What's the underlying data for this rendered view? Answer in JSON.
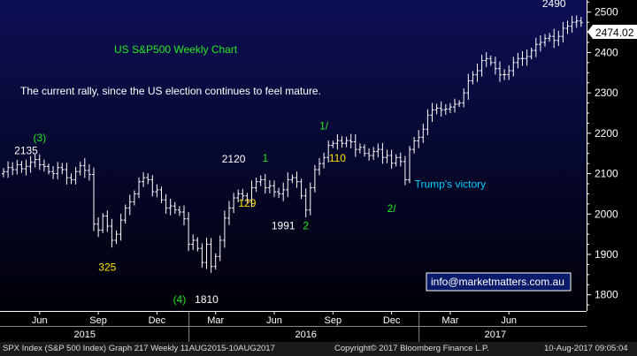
{
  "chart_data": {
    "type": "ohlc",
    "title": "US S&P500 Weekly Chart",
    "subtitle": "The current rally, since the US election continues to feel mature.",
    "last_price_label": "2474.02",
    "ylim": [
      1760,
      2530
    ],
    "y_ticks": [
      1800,
      1900,
      2000,
      2100,
      2200,
      2300,
      2400,
      2500
    ],
    "x_month_ticks": [
      {
        "week": 8,
        "label": "Jun"
      },
      {
        "week": 21,
        "label": "Sep"
      },
      {
        "week": 34,
        "label": "Dec"
      },
      {
        "week": 47,
        "label": "Mar"
      },
      {
        "week": 60,
        "label": "Jun"
      },
      {
        "week": 73,
        "label": "Sep"
      },
      {
        "week": 86,
        "label": "Dec"
      },
      {
        "week": 99,
        "label": "Mar"
      },
      {
        "week": 112,
        "label": "Jun"
      }
    ],
    "x_year_labels": [
      {
        "week": 18,
        "label": "2015"
      },
      {
        "week": 67,
        "label": "2016"
      },
      {
        "week": 109,
        "label": "2017"
      }
    ],
    "x_year_dividers": [
      41,
      92
    ],
    "series": [
      {
        "type": "ohlc",
        "closes": [
          2105,
          2115,
          2110,
          2122,
          2112,
          2118,
          2128,
          2135,
          2122,
          2118,
          2105,
          2100,
          2115,
          2110,
          2090,
          2085,
          2105,
          2120,
          2108,
          2098,
          1975,
          1960,
          1995,
          1970,
          1935,
          1950,
          1985,
          2015,
          2030,
          2050,
          2080,
          2090,
          2085,
          2055,
          2060,
          2035,
          2015,
          2020,
          2010,
          2005,
          1988,
          1925,
          1935,
          1915,
          1880,
          1925,
          1870,
          1895,
          1935,
          1990,
          2015,
          2040,
          2050,
          2045,
          2035,
          2065,
          2080,
          2085,
          2065,
          2070,
          2055,
          2050,
          2060,
          2085,
          2090,
          2080,
          2045,
          2010,
          2065,
          2110,
          2125,
          2140,
          2170,
          2175,
          2182,
          2175,
          2182,
          2179,
          2160,
          2165,
          2150,
          2145,
          2155,
          2160,
          2140,
          2145,
          2126,
          2140,
          2130,
          2085,
          2160,
          2181,
          2190,
          2210,
          2245,
          2258,
          2262,
          2258,
          2260,
          2265,
          2272,
          2275,
          2300,
          2330,
          2345,
          2355,
          2380,
          2385,
          2375,
          2360,
          2345,
          2345,
          2355,
          2375,
          2385,
          2385,
          2390,
          2405,
          2420,
          2425,
          2435,
          2440,
          2430,
          2440,
          2460,
          2465,
          2475,
          2478,
          2474
        ]
      }
    ],
    "annotations": [
      {
        "text": "2135",
        "x": 5,
        "y": 2148,
        "color": "#ffffff"
      },
      {
        "text": "(3)",
        "x": 8,
        "y": 2180,
        "color": "#22e822"
      },
      {
        "text": "325",
        "x": 23,
        "y": 1860,
        "color": "#ffe000"
      },
      {
        "text": "2120",
        "x": 51,
        "y": 2127,
        "color": "#ffffff"
      },
      {
        "text": "1",
        "x": 58,
        "y": 2130,
        "color": "#22e822"
      },
      {
        "text": "129",
        "x": 54,
        "y": 2018,
        "color": "#ffe000"
      },
      {
        "text": "1991",
        "x": 62,
        "y": 1962,
        "color": "#ffffff"
      },
      {
        "text": "2",
        "x": 67,
        "y": 1962,
        "color": "#22e822"
      },
      {
        "text": "(4)",
        "x": 39,
        "y": 1780,
        "color": "#22e822"
      },
      {
        "text": "1810",
        "x": 45,
        "y": 1780,
        "color": "#ffffff"
      },
      {
        "text": "1/",
        "x": 71,
        "y": 2210,
        "color": "#22e822"
      },
      {
        "text": "110",
        "x": 74,
        "y": 2130,
        "color": "#ffe000"
      },
      {
        "text": "2/",
        "x": 86,
        "y": 2005,
        "color": "#22e822"
      },
      {
        "text": "Trump's victory",
        "x": 99,
        "y": 2065,
        "color": "#00ccff"
      },
      {
        "text": "2490",
        "x": 122,
        "y": 2512,
        "color": "#ffffff"
      }
    ],
    "grid": false
  },
  "contact": "info@marketmatters.com.au",
  "footer": {
    "left": "SPX Index (S&P 500 Index) Graph 217  Weekly 11AUG2015-10AUG2017",
    "middle": "Copyright© 2017 Bloomberg Finance L.P.",
    "right": "10-Aug-2017 09:05:04"
  }
}
